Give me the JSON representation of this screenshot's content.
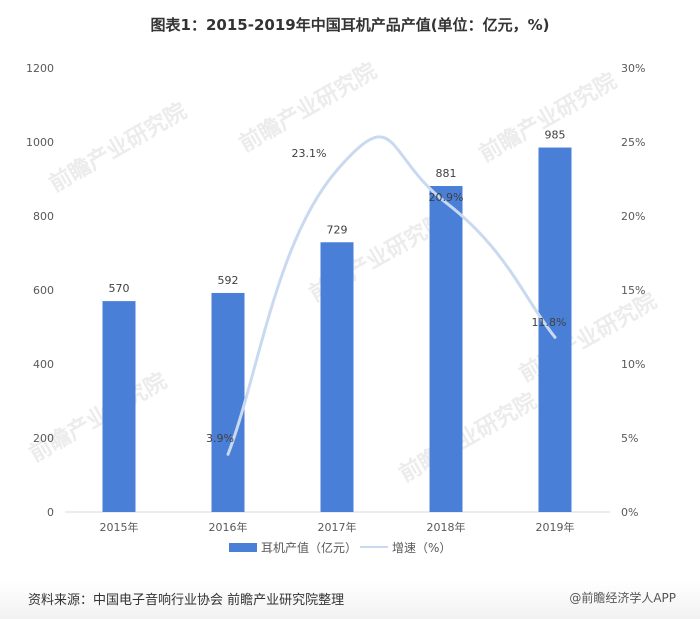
{
  "title": "图表1：2015-2019年中国耳机产品产值(单位：亿元，%)",
  "footer": {
    "source": "资料来源：中国电子音响行业协会 前瞻产业研究院整理",
    "credit": "@前瞻经济学人APP"
  },
  "watermark_text": "前瞻产业研究院",
  "colors": {
    "bar": "#4a7fd8",
    "line": "#c9daf0",
    "axis_text": "#595959",
    "label_text": "#404040"
  },
  "chart_data": {
    "type": "bar+line",
    "title": "图表1：2015-2019年中国耳机产品产值(单位：亿元，%)",
    "categories": [
      "2015年",
      "2016年",
      "2017年",
      "2018年",
      "2019年"
    ],
    "series": [
      {
        "name": "耳机产值（亿元）",
        "type": "bar",
        "axis": "left",
        "values": [
          570,
          592,
          729,
          881,
          985
        ],
        "labels": [
          "570",
          "592",
          "729",
          "881",
          "985"
        ]
      },
      {
        "name": "增速（%）",
        "type": "line",
        "axis": "right",
        "values": [
          null,
          3.9,
          23.1,
          20.9,
          11.8
        ],
        "labels": [
          "",
          "3.9%",
          "23.1%",
          "20.9%",
          "11.8%"
        ]
      }
    ],
    "y_left": {
      "min": 0,
      "max": 1200,
      "ticks": [
        "0",
        "200",
        "400",
        "600",
        "800",
        "1000",
        "1200"
      ]
    },
    "y_right": {
      "min": 0,
      "max": 30,
      "ticks": [
        "0%",
        "5%",
        "10%",
        "15%",
        "20%",
        "25%",
        "30%"
      ]
    },
    "legend": {
      "position": "bottom",
      "entries": [
        "耳机产值（亿元）",
        "增速（%）"
      ]
    },
    "grid": false
  }
}
